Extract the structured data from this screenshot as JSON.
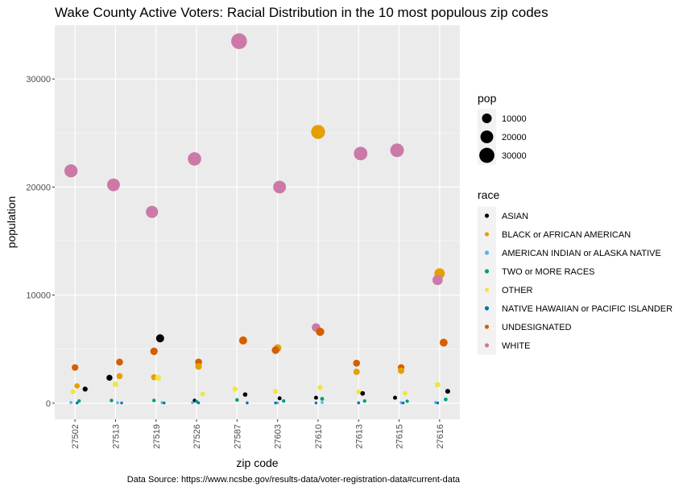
{
  "chart_data": {
    "type": "scatter",
    "title": "Wake County Active Voters: Racial Distribution in the 10 most populous zip codes",
    "xlabel": "zip code",
    "ylabel": "population",
    "caption": "Data Source: https://www.ncsbe.gov/results-data/voter-registration-data#current-data",
    "categories": [
      "27502",
      "27513",
      "27519",
      "27526",
      "27587",
      "27603",
      "27610",
      "27613",
      "27615",
      "27616"
    ],
    "ylim": [
      -1500,
      35000
    ],
    "yticks": [
      0,
      10000,
      20000,
      30000
    ],
    "ytick_labels": [
      "0",
      "10000",
      "20000",
      "30000"
    ],
    "grid": true,
    "jitter": true,
    "legend_placement": "right",
    "size_legend": {
      "title": "pop",
      "values": [
        10000,
        20000,
        30000
      ],
      "labels": [
        "10000",
        "20000",
        "30000"
      ]
    },
    "color_legend": {
      "title": "race"
    },
    "series": [
      {
        "name": "ASIAN",
        "color": "#000000",
        "values": [
          1300,
          2350,
          6000,
          250,
          800,
          450,
          500,
          900,
          500,
          1100
        ],
        "jitter": [
          0.25,
          -0.15,
          0.1,
          -0.05,
          0.2,
          0.05,
          -0.05,
          0.1,
          -0.1,
          0.2
        ]
      },
      {
        "name": "BLACK or AFRICAN AMERICAN",
        "color": "#E69F00",
        "values": [
          1600,
          2500,
          2400,
          3400,
          5800,
          5100,
          25100,
          2900,
          3000,
          12000
        ],
        "jitter": [
          0.05,
          0.1,
          -0.05,
          0.05,
          0.15,
          0.0,
          0.0,
          -0.05,
          0.05,
          0.0
        ]
      },
      {
        "name": "AMERICAN INDIAN or ALASKA NATIVE",
        "color": "#56B4E9",
        "values": [
          60,
          40,
          50,
          50,
          40,
          30,
          60,
          50,
          40,
          60
        ],
        "jitter": [
          -0.1,
          0.05,
          0.15,
          -0.1,
          0.25,
          0.0,
          0.1,
          0.0,
          0.05,
          -0.1
        ]
      },
      {
        "name": "TWO or MORE RACES",
        "color": "#009E73",
        "values": [
          200,
          250,
          250,
          150,
          300,
          200,
          400,
          200,
          180,
          350
        ],
        "jitter": [
          0.1,
          -0.1,
          -0.05,
          0.0,
          0.0,
          0.15,
          0.1,
          0.15,
          0.2,
          0.15
        ]
      },
      {
        "name": "OTHER",
        "color": "#F0E442",
        "values": [
          1050,
          1750,
          2350,
          850,
          1300,
          1100,
          1450,
          1050,
          900,
          1700
        ],
        "jitter": [
          -0.05,
          0.0,
          0.05,
          0.15,
          -0.05,
          -0.05,
          0.05,
          0.0,
          0.15,
          -0.05
        ]
      },
      {
        "name": "NATIVE HAWAIIAN or PACIFIC ISLANDER",
        "color": "#0072B2",
        "values": [
          20,
          20,
          20,
          30,
          20,
          20,
          20,
          20,
          20,
          20
        ],
        "jitter": [
          0.05,
          0.15,
          0.2,
          0.05,
          0.25,
          -0.05,
          -0.05,
          0.0,
          0.1,
          -0.05
        ]
      },
      {
        "name": "UNDESIGNATED",
        "color": "#D55E00",
        "values": [
          3300,
          3800,
          4800,
          3800,
          5800,
          4900,
          6600,
          3700,
          3300,
          5600
        ],
        "jitter": [
          0.0,
          0.1,
          -0.05,
          0.05,
          0.15,
          -0.05,
          0.05,
          -0.05,
          0.05,
          0.1
        ]
      },
      {
        "name": "WHITE",
        "color": "#CC79A7",
        "values": [
          21500,
          20200,
          17700,
          22600,
          33500,
          20000,
          7000,
          23100,
          23400,
          11400
        ],
        "jitter": [
          -0.1,
          -0.05,
          -0.1,
          -0.05,
          0.05,
          0.05,
          -0.05,
          0.05,
          -0.05,
          -0.05
        ]
      }
    ]
  }
}
